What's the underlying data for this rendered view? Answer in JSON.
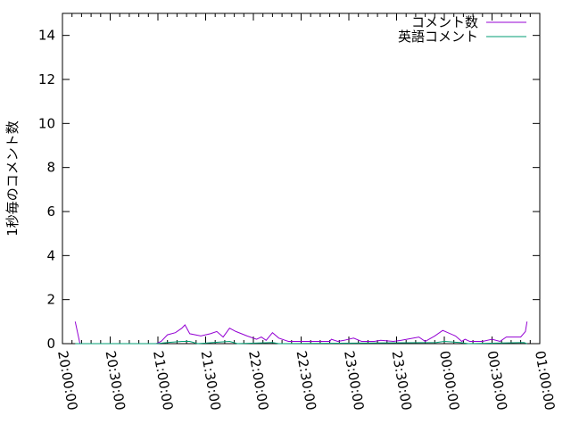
{
  "chart_data": {
    "type": "line",
    "title": "",
    "xlabel": "",
    "ylabel": "1秒毎のコメント数",
    "xlim": [
      "20:00:00",
      "01:00:00"
    ],
    "ylim": [
      0,
      15
    ],
    "x_ticks": [
      "20:00:00",
      "20:30:00",
      "21:00:00",
      "21:30:00",
      "22:00:00",
      "22:30:00",
      "23:00:00",
      "23:30:00",
      "00:00:00",
      "00:30:00",
      "01:00:00"
    ],
    "y_ticks": [
      "0",
      "2",
      "4",
      "6",
      "8",
      "10",
      "12",
      "14"
    ],
    "grid": false,
    "legend_position": "top-right",
    "series": [
      {
        "name": "コメント数",
        "color": "#9400d3",
        "points": [
          [
            "20:08",
            1.0
          ],
          [
            "20:11",
            0
          ],
          [
            "20:59",
            0
          ],
          [
            "21:02",
            0.1
          ],
          [
            "21:06",
            0.4
          ],
          [
            "21:11",
            0.5
          ],
          [
            "21:15",
            0.7
          ],
          [
            "21:17",
            0.85
          ],
          [
            "21:20",
            0.45
          ],
          [
            "21:27",
            0.35
          ],
          [
            "21:33",
            0.45
          ],
          [
            "21:37",
            0.55
          ],
          [
            "21:41",
            0.3
          ],
          [
            "21:45",
            0.7
          ],
          [
            "21:49",
            0.55
          ],
          [
            "21:56",
            0.35
          ],
          [
            "22:02",
            0.2
          ],
          [
            "22:05",
            0.3
          ],
          [
            "22:08",
            0.15
          ],
          [
            "22:12",
            0.5
          ],
          [
            "22:16",
            0.25
          ],
          [
            "22:22",
            0.1
          ],
          [
            "22:48",
            0.1
          ],
          [
            "22:49",
            0.2
          ],
          [
            "22:53",
            0.1
          ],
          [
            "22:57",
            0.15
          ],
          [
            "23:03",
            0.25
          ],
          [
            "23:08",
            0.1
          ],
          [
            "23:16",
            0.1
          ],
          [
            "23:20",
            0.15
          ],
          [
            "23:28",
            0.1
          ],
          [
            "23:33",
            0.15
          ],
          [
            "23:44",
            0.3
          ],
          [
            "23:48",
            0.1
          ],
          [
            "23:54",
            0.35
          ],
          [
            "23:59",
            0.6
          ],
          [
            "00:07",
            0.35
          ],
          [
            "00:11",
            0.1
          ],
          [
            "00:13",
            0.2
          ],
          [
            "00:16",
            0.1
          ],
          [
            "00:24",
            0.1
          ],
          [
            "00:30",
            0.2
          ],
          [
            "00:35",
            0.1
          ],
          [
            "00:39",
            0.3
          ],
          [
            "00:48",
            0.3
          ],
          [
            "00:51",
            0.55
          ],
          [
            "00:52",
            1.0
          ]
        ]
      },
      {
        "name": "英語コメント",
        "color": "#009e73",
        "points": [
          [
            "20:08",
            0
          ],
          [
            "20:59",
            0
          ],
          [
            "21:06",
            0.05
          ],
          [
            "21:15",
            0.1
          ],
          [
            "21:20",
            0.1
          ],
          [
            "21:25",
            0
          ],
          [
            "21:45",
            0.1
          ],
          [
            "21:50",
            0
          ],
          [
            "22:12",
            0.05
          ],
          [
            "22:16",
            0
          ],
          [
            "23:55",
            0.05
          ],
          [
            "00:00",
            0.1
          ],
          [
            "00:10",
            0.05
          ],
          [
            "00:15",
            0
          ],
          [
            "00:50",
            0.05
          ],
          [
            "00:52",
            0
          ]
        ]
      }
    ]
  }
}
